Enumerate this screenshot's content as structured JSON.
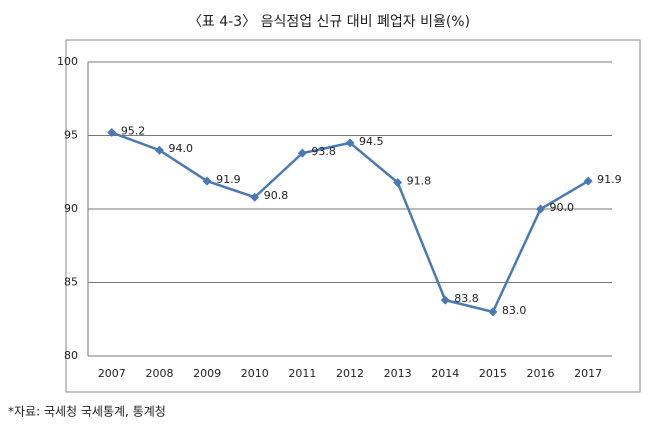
{
  "chart_data": {
    "type": "line",
    "title": "〈표 4-3〉 음식점업 신규 대비 폐업자 비율(%)",
    "categories": [
      "2007",
      "2008",
      "2009",
      "2010",
      "2011",
      "2012",
      "2013",
      "2014",
      "2015",
      "2016",
      "2017"
    ],
    "values": [
      95.2,
      94.0,
      91.9,
      90.8,
      93.8,
      94.5,
      91.8,
      83.8,
      83.0,
      90.0,
      91.9
    ],
    "value_labels": [
      "95.2",
      "94.0",
      "91.9",
      "90.8",
      "93.8",
      "94.5",
      "91.8",
      "83.8",
      "83.0",
      "90.0",
      "91.9"
    ],
    "color": "#4a7ab5",
    "ylim": [
      80,
      100
    ],
    "yticks": [
      80,
      85,
      90,
      95,
      100
    ],
    "grid": true,
    "source": "*자료: 국세청 국세통계, 통계청"
  }
}
